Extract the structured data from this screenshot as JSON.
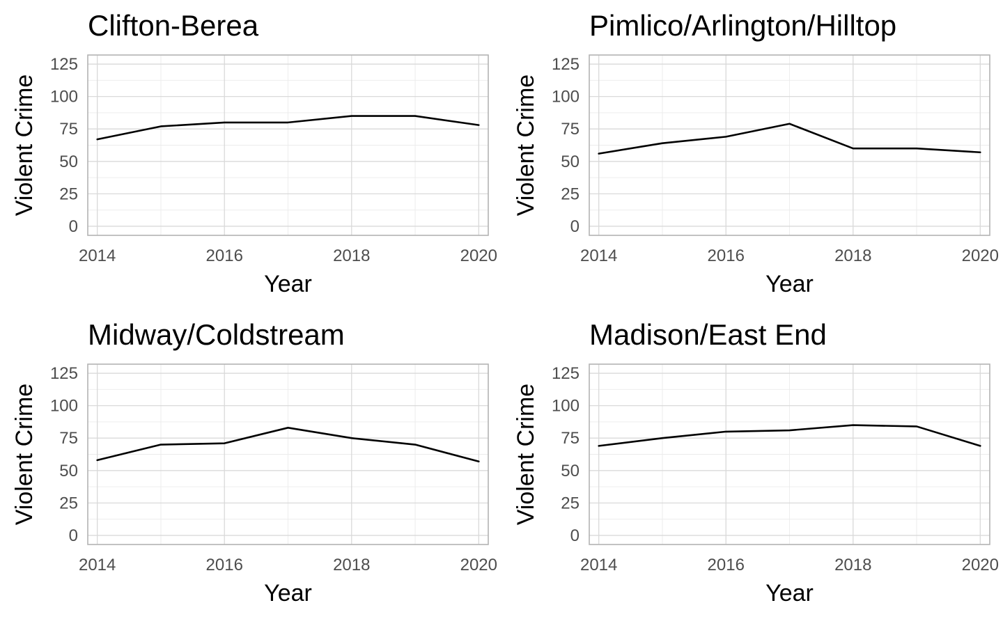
{
  "chart_data": [
    {
      "type": "line",
      "title": "Clifton-Berea",
      "xlabel": "Year",
      "ylabel": "Violent Crime",
      "x": [
        2014,
        2015,
        2016,
        2017,
        2018,
        2019,
        2020
      ],
      "values": [
        67,
        77,
        80,
        80,
        85,
        85,
        78
      ],
      "xlim": [
        2013.85,
        2020.15
      ],
      "ylim": [
        -7,
        132
      ],
      "xticks": [
        2014,
        2016,
        2018,
        2020
      ],
      "yticks": [
        0,
        25,
        50,
        75,
        100,
        125
      ],
      "grid": true,
      "line_color": "#000000"
    },
    {
      "type": "line",
      "title": "Pimlico/Arlington/Hilltop",
      "xlabel": "Year",
      "ylabel": "Violent Crime",
      "x": [
        2014,
        2015,
        2016,
        2017,
        2018,
        2019,
        2020
      ],
      "values": [
        56,
        64,
        69,
        79,
        60,
        60,
        57
      ],
      "xlim": [
        2013.85,
        2020.15
      ],
      "ylim": [
        -7,
        132
      ],
      "xticks": [
        2014,
        2016,
        2018,
        2020
      ],
      "yticks": [
        0,
        25,
        50,
        75,
        100,
        125
      ],
      "grid": true,
      "line_color": "#000000"
    },
    {
      "type": "line",
      "title": "Midway/Coldstream",
      "xlabel": "Year",
      "ylabel": "Violent Crime",
      "x": [
        2014,
        2015,
        2016,
        2017,
        2018,
        2019,
        2020
      ],
      "values": [
        58,
        70,
        71,
        83,
        75,
        70,
        57
      ],
      "xlim": [
        2013.85,
        2020.15
      ],
      "ylim": [
        -7,
        132
      ],
      "xticks": [
        2014,
        2016,
        2018,
        2020
      ],
      "yticks": [
        0,
        25,
        50,
        75,
        100,
        125
      ],
      "grid": true,
      "line_color": "#000000"
    },
    {
      "type": "line",
      "title": "Madison/East End",
      "xlabel": "Year",
      "ylabel": "Violent Crime",
      "x": [
        2014,
        2015,
        2016,
        2017,
        2018,
        2019,
        2020
      ],
      "values": [
        69,
        75,
        80,
        81,
        85,
        84,
        69
      ],
      "xlim": [
        2013.85,
        2020.15
      ],
      "ylim": [
        -7,
        132
      ],
      "xticks": [
        2014,
        2016,
        2018,
        2020
      ],
      "yticks": [
        0,
        25,
        50,
        75,
        100,
        125
      ],
      "grid": true,
      "line_color": "#000000"
    }
  ]
}
